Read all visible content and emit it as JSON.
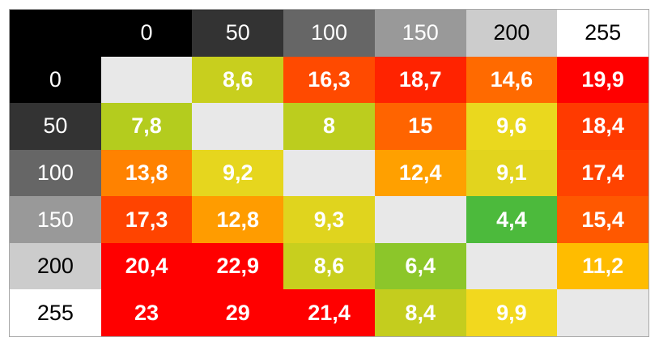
{
  "chart_data": {
    "type": "heatmap",
    "title": "",
    "xlabel": "",
    "ylabel": "",
    "corner": "",
    "x_categories": [
      "0",
      "50",
      "100",
      "150",
      "200",
      "255"
    ],
    "y_categories": [
      "0",
      "50",
      "100",
      "150",
      "200",
      "255"
    ],
    "values": [
      [
        "",
        "8,6",
        "16,3",
        "18,7",
        "14,6",
        "19,9"
      ],
      [
        "7,8",
        "",
        "8",
        "15",
        "9,6",
        "18,4"
      ],
      [
        "13,8",
        "9,2",
        "",
        "12,4",
        "9,1",
        "17,4"
      ],
      [
        "17,3",
        "12,8",
        "9,3",
        "",
        "4,4",
        "15,4"
      ],
      [
        "20,4",
        "22,9",
        "8,6",
        "6,4",
        "",
        "11,2"
      ],
      [
        "23",
        "29",
        "21,4",
        "8,4",
        "9,9",
        ""
      ]
    ],
    "header_backgrounds": [
      "#000000",
      "#333333",
      "#666666",
      "#999999",
      "#cccccc",
      "#ffffff"
    ],
    "header_text_colors": [
      "#ffffff",
      "#ffffff",
      "#ffffff",
      "#ffffff",
      "#000000",
      "#000000"
    ],
    "corner_color": "#000000",
    "diagonal_color": "#e8e8e8",
    "cell_colors": [
      [
        "#e8e8e8",
        "#c8cf1e",
        "#ff4a00",
        "#ff2300",
        "#ff6a00",
        "#ff0000"
      ],
      [
        "#b4cc1e",
        "#e8e8e8",
        "#bccd1e",
        "#ff6400",
        "#ead81e",
        "#ff3a00"
      ],
      [
        "#ff8200",
        "#e6d61e",
        "#e8e8e8",
        "#ffa000",
        "#e2d41e",
        "#ff4300"
      ],
      [
        "#ff4400",
        "#ff9c00",
        "#e0d41e",
        "#e8e8e8",
        "#4cba3c",
        "#ff5800"
      ],
      [
        "#ff0000",
        "#ff0000",
        "#c8cf1e",
        "#8cc62a",
        "#e8e8e8",
        "#ffbc00"
      ],
      [
        "#ff0000",
        "#ff0000",
        "#ff0000",
        "#c4cd1e",
        "#f2d81e",
        "#e8e8e8"
      ]
    ]
  }
}
